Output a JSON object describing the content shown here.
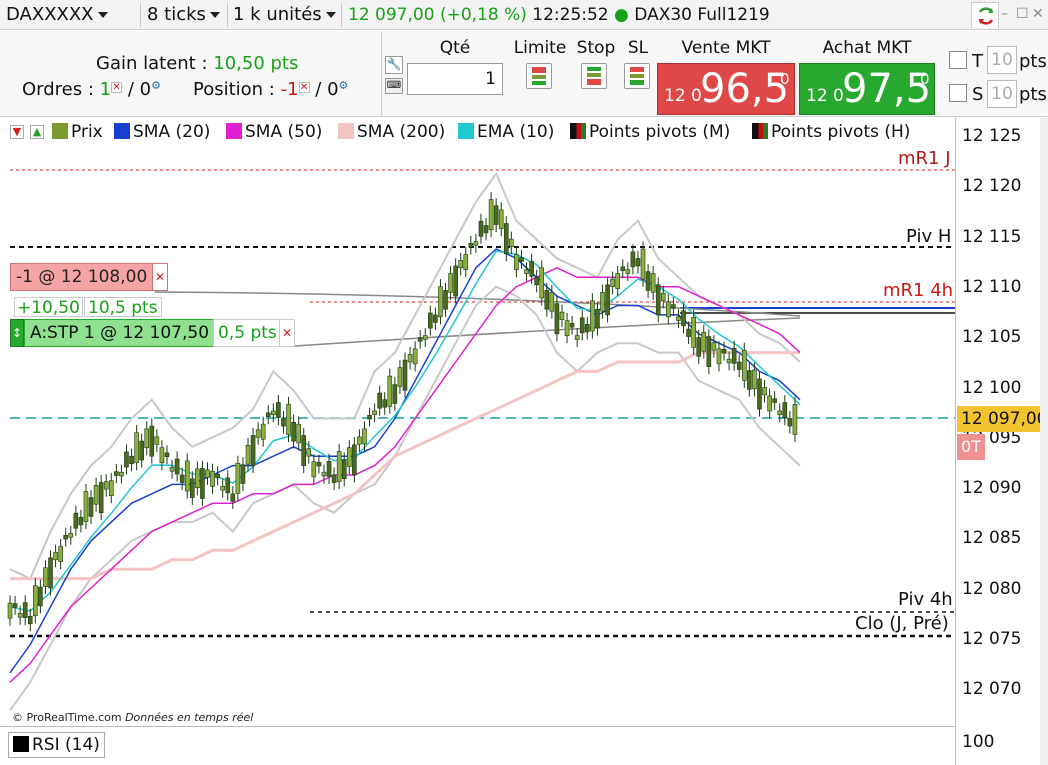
{
  "topbar": {
    "instrument": "DAXXXXX",
    "ticks": "8 ticks",
    "units": "1 k unités",
    "price": "12 097,00",
    "change": "(+0,18 %)",
    "time": "12:25:52",
    "feed": "DAX30 Full1219"
  },
  "panel": {
    "gain_label": "Gain latent : ",
    "gain_value": "10,50 pts",
    "orders_label": "Ordres : ",
    "orders_count": "1",
    "orders_zero": "/ 0",
    "position_label": "Position : ",
    "position_value": "-1",
    "position_zero": "/ 0",
    "qty_label": "Qté",
    "qty_value": "1",
    "limit_label": "Limite",
    "stop_label": "Stop",
    "sl_label": "SL",
    "sell_label": "Vente MKT",
    "sell_prefix": "12 0",
    "sell_main": "96,5",
    "sell_sup": "0",
    "buy_label": "Achat MKT",
    "buy_prefix": "12 0",
    "buy_main": "97,5",
    "buy_sup": "0",
    "t_label": "T",
    "s_label": "S",
    "t_value": "10",
    "s_value": "10",
    "pts": "pts"
  },
  "legend": [
    {
      "label": "Prix",
      "color": "#7a9a30"
    },
    {
      "label": "SMA (20)",
      "color": "#1a3fd0"
    },
    {
      "label": "SMA (50)",
      "color": "#e020d0"
    },
    {
      "label": "SMA (200)",
      "color": "#f4c4c4"
    },
    {
      "label": "EMA (10)",
      "color": "#20c8d0"
    },
    {
      "label": "Points pivots (M)",
      "color": "#222222"
    },
    {
      "label": "Points pivots (H)",
      "color": "#222222"
    }
  ],
  "levels": {
    "mr1j": "mR1 J",
    "pivh": "Piv H",
    "mr1_4h": "mR1 4h",
    "piv4h": "Piv 4h",
    "clo": "Clo (J, Pré)"
  },
  "orders": {
    "short": "-1 @ 12 108,00",
    "pnl_pts": "+10,50",
    "pnl_value": "10,5 pts",
    "stop": "A:STP 1 @ 12 107,50",
    "stop_dist": "0,5 pts"
  },
  "axis": {
    "labels": [
      "12 125",
      "12 120",
      "12 115",
      "12 110",
      "12 105",
      "12 100",
      "12 095",
      "12 090",
      "12 085",
      "12 080",
      "12 075",
      "12 070"
    ],
    "current": "12 097,00",
    "ot": "0T",
    "rsi_level": "100"
  },
  "footer": {
    "copyright": "© ProRealTime.com",
    "realtime": "Données en temps réel",
    "rsi": "RSI (14)"
  },
  "chart_data": {
    "type": "candlestick",
    "ylim": [
      12067,
      12127
    ],
    "price_series": [
      12077,
      12076,
      12081,
      12085,
      12088,
      12090,
      12093,
      12095,
      12092,
      12090,
      12091,
      12089,
      12094,
      12098,
      12096,
      12092,
      12091,
      12093,
      12098,
      12100,
      12104,
      12108,
      12112,
      12116,
      12119,
      12114,
      12112,
      12108,
      12106,
      12108,
      12112,
      12114,
      12110,
      12108,
      12105,
      12104,
      12103,
      12100,
      12098,
      12096
    ],
    "sma20": [
      12070,
      12073,
      12077,
      12081,
      12084,
      12086,
      12088,
      12089,
      12090,
      12090,
      12091,
      12092,
      12092,
      12093,
      12094,
      12093,
      12093,
      12093,
      12094,
      12097,
      12101,
      12105,
      12109,
      12113,
      12115,
      12114,
      12112,
      12110,
      12109,
      12108,
      12109,
      12109,
      12108,
      12108,
      12106,
      12105,
      12104,
      12102,
      12101,
      12099
    ],
    "sma50": [
      12069,
      12071,
      12074,
      12077,
      12079,
      12081,
      12083,
      12085,
      12086,
      12087,
      12088,
      12088,
      12089,
      12089,
      12090,
      12090,
      12091,
      12091,
      12092,
      12094,
      12097,
      12100,
      12103,
      12106,
      12109,
      12111,
      12112,
      12113,
      12112,
      12112,
      12112,
      12112,
      12111,
      12111,
      12110,
      12109,
      12108,
      12107,
      12106,
      12104
    ],
    "sma200": [
      12080,
      12080,
      12080,
      12080,
      12080,
      12081,
      12081,
      12081,
      12082,
      12082,
      12083,
      12083,
      12084,
      12085,
      12086,
      12087,
      12088,
      12089,
      12091,
      12093,
      12094,
      12095,
      12096,
      12097,
      12098,
      12099,
      12100,
      12101,
      12102,
      12102,
      12103,
      12103,
      12103,
      12103,
      12104,
      12104,
      12104,
      12104,
      12104,
      12104
    ]
  }
}
